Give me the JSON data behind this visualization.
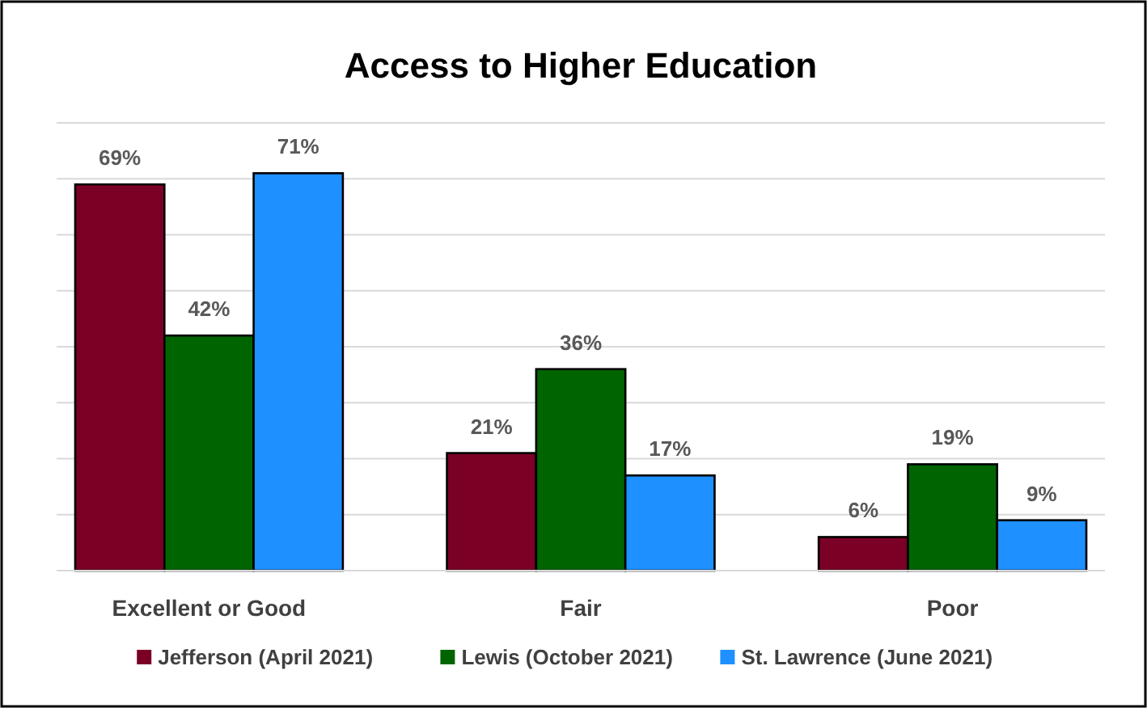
{
  "chart_data": {
    "type": "bar",
    "title": "Access to Higher Education",
    "categories": [
      "Excellent or Good",
      "Fair",
      "Poor"
    ],
    "series": [
      {
        "name": "Jefferson (April 2021)",
        "color": "#7b0025",
        "values": [
          69,
          21,
          6
        ],
        "value_labels": [
          "69%",
          "21%",
          "6%"
        ]
      },
      {
        "name": "Lewis (October 2021)",
        "color": "#006400",
        "values": [
          42,
          36,
          19
        ],
        "value_labels": [
          "42%",
          "36%",
          "19%"
        ]
      },
      {
        "name": "St. Lawrence (June 2021)",
        "color": "#1e90ff",
        "values": [
          71,
          17,
          9
        ],
        "value_labels": [
          "71%",
          "17%",
          "9%"
        ]
      }
    ],
    "ylim": [
      0,
      80
    ],
    "yticks": [
      {
        "value": 0,
        "label": null
      },
      {
        "value": 10,
        "label": null
      },
      {
        "value": 20,
        "label": null
      },
      {
        "value": 30,
        "label": null
      },
      {
        "value": 40,
        "label": null
      },
      {
        "value": 50,
        "label": null
      },
      {
        "value": 60,
        "label": null
      },
      {
        "value": 70,
        "label": null
      },
      {
        "value": 80,
        "label": null
      }
    ],
    "grid": "y",
    "legend": "bottom",
    "tick_labels": "x"
  }
}
